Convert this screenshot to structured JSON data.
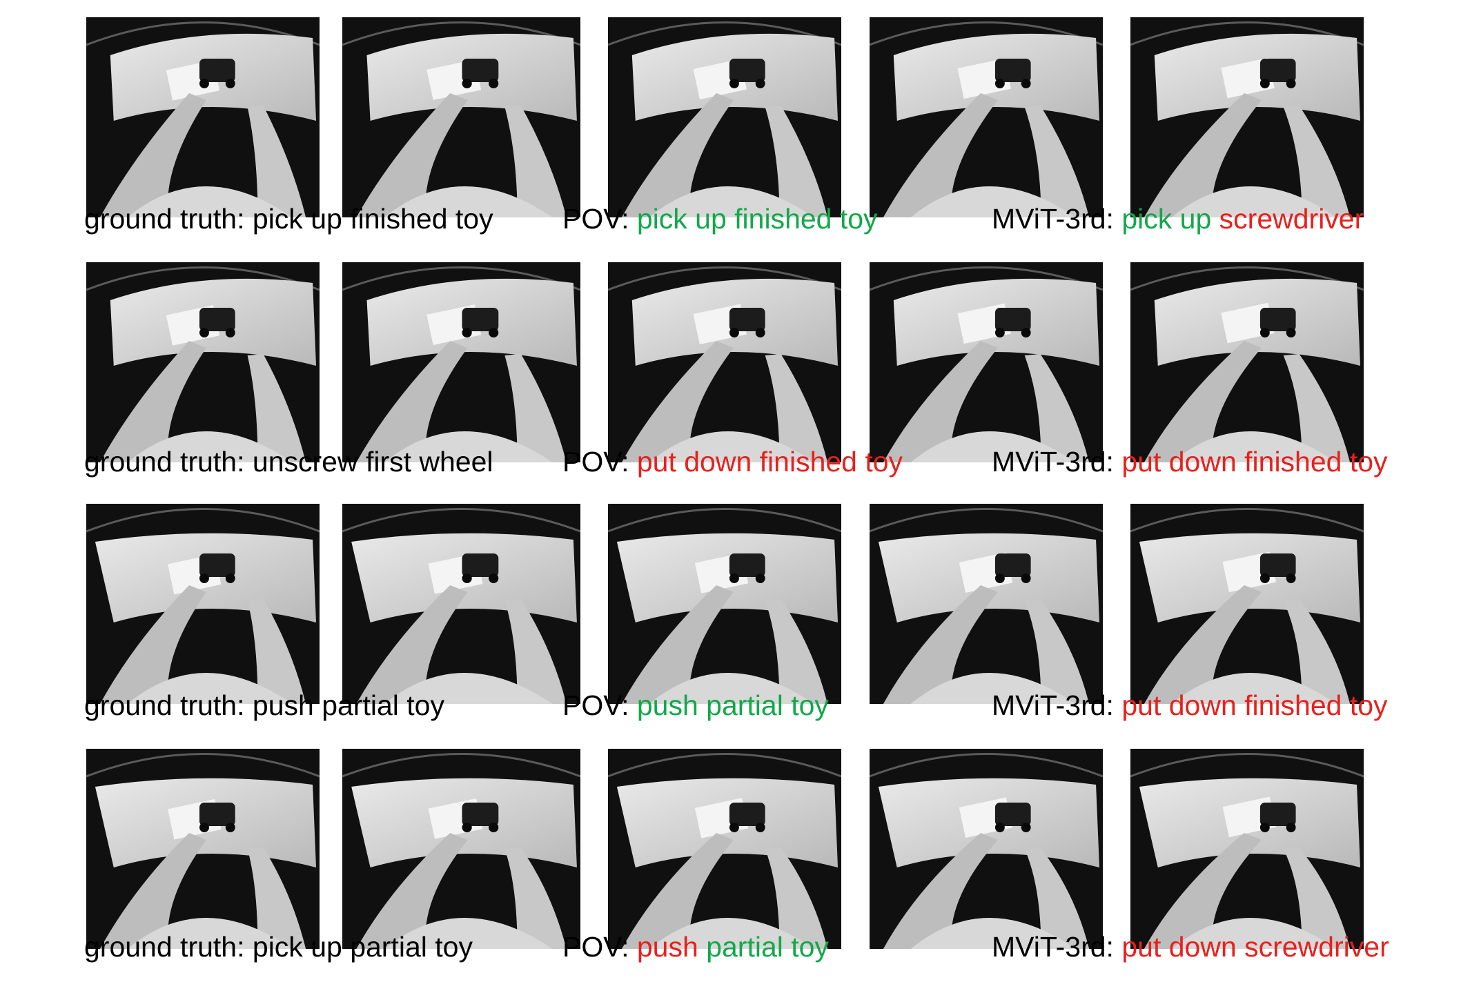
{
  "colors": {
    "correct": "#12a84a",
    "wrong": "#e8201c",
    "text": "#000000"
  },
  "rows": [
    {
      "captions": [
        {
          "prefix": "ground truth: ",
          "segments": [
            {
              "text": "pick up finished toy",
              "status": "neutral"
            }
          ]
        },
        {
          "prefix": "POV: ",
          "segments": [
            {
              "text": "pick up finished toy",
              "status": "correct"
            }
          ]
        },
        {
          "prefix": "MViT-3rd: ",
          "segments": [
            {
              "text": "pick up",
              "status": "correct"
            },
            {
              "text": " ",
              "status": "neutral"
            },
            {
              "text": "screwdriver",
              "status": "wrong"
            }
          ]
        }
      ]
    },
    {
      "captions": [
        {
          "prefix": "ground truth: ",
          "segments": [
            {
              "text": "unscrew first wheel",
              "status": "neutral"
            }
          ]
        },
        {
          "prefix": "POV: ",
          "segments": [
            {
              "text": "put down finished toy",
              "status": "wrong"
            }
          ]
        },
        {
          "prefix": "MViT-3rd: ",
          "segments": [
            {
              "text": "put down finished toy",
              "status": "wrong"
            }
          ]
        }
      ]
    },
    {
      "captions": [
        {
          "prefix": "ground truth: ",
          "segments": [
            {
              "text": "push partial toy",
              "status": "neutral"
            }
          ]
        },
        {
          "prefix": "POV: ",
          "segments": [
            {
              "text": "push partial toy",
              "status": "correct"
            }
          ]
        },
        {
          "prefix": "MViT-3rd: ",
          "segments": [
            {
              "text": "put down finished toy",
              "status": "wrong"
            }
          ]
        }
      ]
    },
    {
      "captions": [
        {
          "prefix": "ground truth: ",
          "segments": [
            {
              "text": "pick up partial toy",
              "status": "neutral"
            }
          ]
        },
        {
          "prefix": "POV: ",
          "segments": [
            {
              "text": "push",
              "status": "wrong"
            },
            {
              "text": " ",
              "status": "neutral"
            },
            {
              "text": "partial toy",
              "status": "correct"
            }
          ]
        },
        {
          "prefix": "MViT-3rd: ",
          "segments": [
            {
              "text": "put down screwdriver",
              "status": "wrong"
            }
          ]
        }
      ]
    }
  ]
}
